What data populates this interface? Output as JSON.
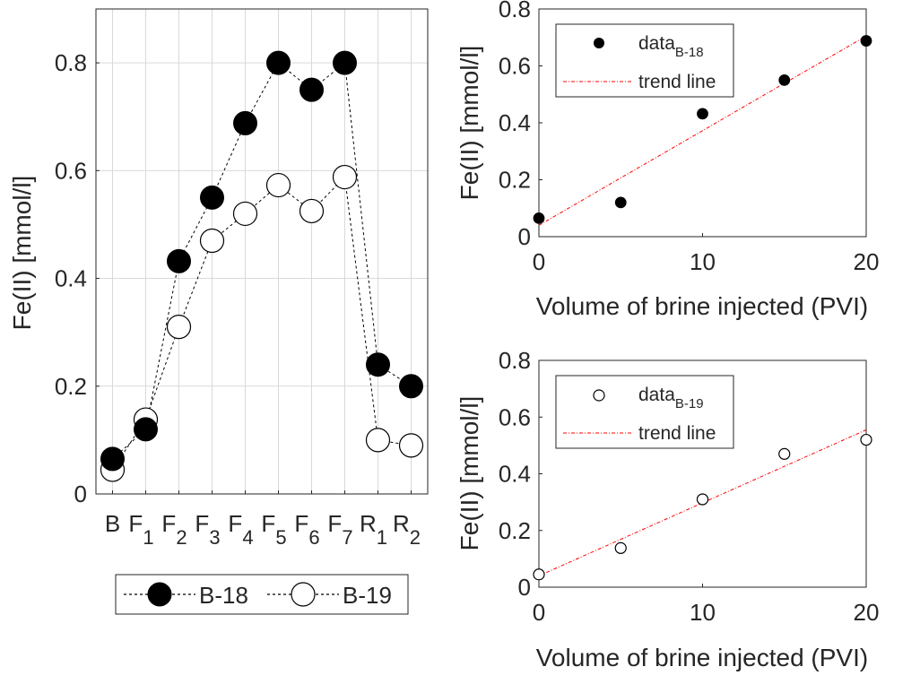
{
  "colors": {
    "b18_fill": "#000000",
    "b19_fill": "#ffffff",
    "marker_edge": "#000000",
    "trend_line": "#ff0000",
    "grid": "#d9d9d9",
    "axis": "#262626"
  },
  "chart_data": [
    {
      "id": "left",
      "type": "line",
      "ylabel": "Fe(II) [mmol/l]",
      "xlabel": "",
      "ylim": [
        0,
        0.9
      ],
      "yticks": [
        0,
        0.2,
        0.4,
        0.6,
        0.8
      ],
      "ytick_labels": [
        "0",
        "0.2",
        "0.4",
        "0.6",
        "0.8"
      ],
      "grid": true,
      "legend_position": "bottom-outside",
      "categories": [
        {
          "main": "B",
          "sub": ""
        },
        {
          "main": "F",
          "sub": "1"
        },
        {
          "main": "F",
          "sub": "2"
        },
        {
          "main": "F",
          "sub": "3"
        },
        {
          "main": "F",
          "sub": "4"
        },
        {
          "main": "F",
          "sub": "5"
        },
        {
          "main": "F",
          "sub": "6"
        },
        {
          "main": "F",
          "sub": "7"
        },
        {
          "main": "R",
          "sub": "1"
        },
        {
          "main": "R",
          "sub": "2"
        }
      ],
      "series": [
        {
          "name": "B-18",
          "marker": "filled-circle",
          "line": "dashed",
          "values": [
            0.065,
            0.12,
            0.432,
            0.55,
            0.688,
            0.8,
            0.75,
            0.8,
            0.24,
            0.2
          ]
        },
        {
          "name": "B-19",
          "marker": "open-circle",
          "line": "dashed",
          "values": [
            0.045,
            0.138,
            0.31,
            0.47,
            0.52,
            0.573,
            0.525,
            0.588,
            0.1,
            0.09
          ]
        }
      ]
    },
    {
      "id": "top-right",
      "type": "scatter",
      "ylabel": "Fe(II) [mmol/l]",
      "xlabel": "Volume of brine injected (PVI)",
      "xlim": [
        0,
        20
      ],
      "ylim": [
        0,
        0.8
      ],
      "xticks": [
        0,
        10,
        20
      ],
      "xtick_labels": [
        "0",
        "10",
        "20"
      ],
      "yticks": [
        0,
        0.2,
        0.4,
        0.6,
        0.8
      ],
      "ytick_labels": [
        "0",
        "0.2",
        "0.4",
        "0.6",
        "0.8"
      ],
      "grid": false,
      "legend_position": "top-left",
      "legend": {
        "data_main": "data",
        "data_sub": "B-18",
        "trend": "trend line"
      },
      "series": [
        {
          "name": "data B-18",
          "marker": "filled-circle",
          "x": [
            0,
            5,
            10,
            15,
            20
          ],
          "y": [
            0.065,
            0.12,
            0.432,
            0.55,
            0.688
          ]
        }
      ],
      "trend": {
        "x": [
          0,
          20
        ],
        "y": [
          0.04,
          0.705
        ]
      }
    },
    {
      "id": "bottom-right",
      "type": "scatter",
      "ylabel": "Fe(II) [mmol/l]",
      "xlabel": "Volume of brine injected (PVI)",
      "xlim": [
        0,
        20
      ],
      "ylim": [
        0,
        0.8
      ],
      "xticks": [
        0,
        10,
        20
      ],
      "xtick_labels": [
        "0",
        "10",
        "20"
      ],
      "yticks": [
        0,
        0.2,
        0.4,
        0.6,
        0.8
      ],
      "ytick_labels": [
        "0",
        "0.2",
        "0.4",
        "0.6",
        "0.8"
      ],
      "grid": false,
      "legend_position": "top-left",
      "legend": {
        "data_main": "data",
        "data_sub": "B-19",
        "trend": "trend line"
      },
      "series": [
        {
          "name": "data B-19",
          "marker": "open-circle",
          "x": [
            0,
            5,
            10,
            15,
            20
          ],
          "y": [
            0.045,
            0.138,
            0.31,
            0.47,
            0.52
          ]
        }
      ],
      "trend": {
        "x": [
          0,
          20
        ],
        "y": [
          0.04,
          0.555
        ]
      }
    }
  ]
}
